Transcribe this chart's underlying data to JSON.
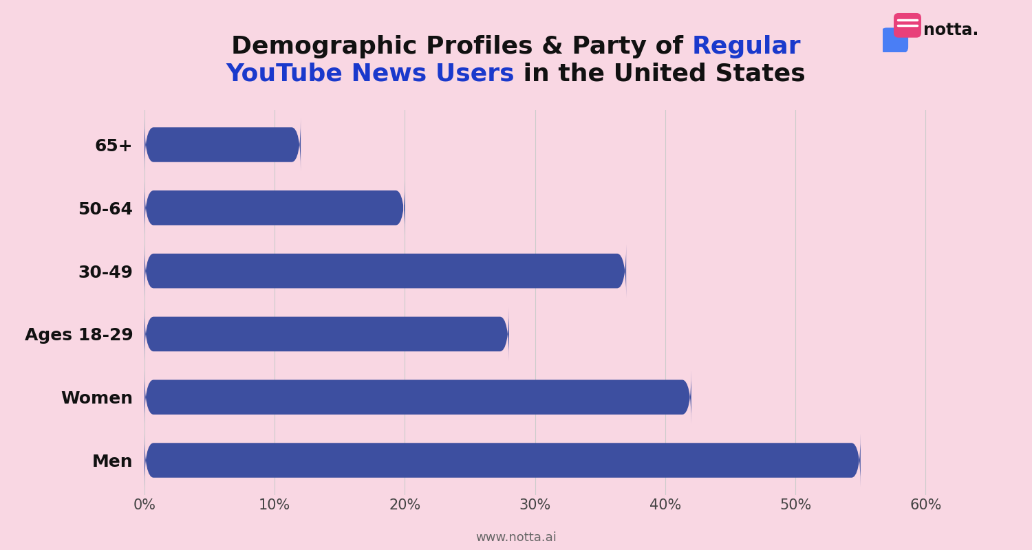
{
  "categories": [
    "Men",
    "Women",
    "Ages 18-29",
    "30-49",
    "50-64",
    "65+"
  ],
  "values": [
    55,
    42,
    28,
    37,
    20,
    12
  ],
  "bar_color": "#3d4fa0",
  "background_color": "#f9d7e3",
  "title_fontsize": 26,
  "bar_height": 0.55,
  "xlim": [
    0,
    65
  ],
  "xticks": [
    0,
    10,
    20,
    30,
    40,
    50,
    60
  ],
  "xtick_labels": [
    "0%",
    "10%",
    "20%",
    "30%",
    "40%",
    "50%",
    "60%"
  ],
  "ylabel_fontsize": 18,
  "tick_fontsize": 15,
  "footer_text": "www.notta.ai",
  "blue_color": "#1a39cc",
  "black_color": "#111111",
  "grid_color": "#cccccc"
}
